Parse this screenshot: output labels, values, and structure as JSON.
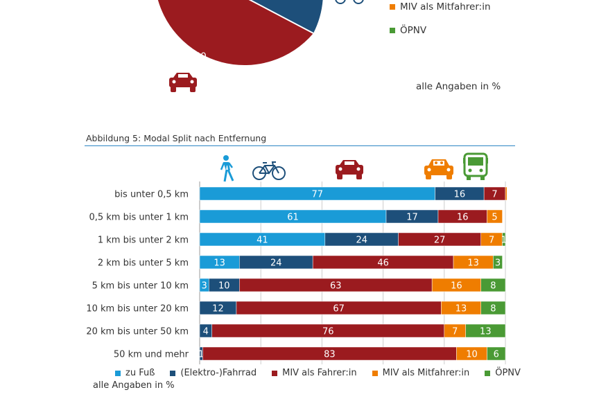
{
  "colors": {
    "walk": "#1a9bd7",
    "bike": "#1d4f7a",
    "driver": "#9b1b1f",
    "passenger": "#ef7d00",
    "transit": "#4a9a35",
    "rule": "#2a85c4",
    "grid": "#cccccc"
  },
  "top_pie": {
    "label_driver": "50",
    "legend": [
      {
        "label": "MIV als Mitfahrer:in",
        "color": "#ef7d00"
      },
      {
        "label": "ÖPNV",
        "color": "#4a9a35"
      }
    ],
    "unit_note": "alle Angaben in %",
    "icons": [
      "bicycle-icon",
      "car-icon"
    ]
  },
  "caption": "Abbildung 5: Modal Split nach Entfernung",
  "chart_data": {
    "type": "bar",
    "orientation": "horizontal",
    "stacked": true,
    "title": "Abbildung 5: Modal Split nach Entfernung",
    "xlim": [
      0,
      100
    ],
    "categories": [
      "bis unter 0,5 km",
      "0,5 km bis unter 1 km",
      "1 km bis unter 2 km",
      "2 km bis unter 5 km",
      "5 km bis unter 10 km",
      "10 km bis unter 20 km",
      "20 km bis unter 50 km",
      "50 km und mehr"
    ],
    "series": [
      {
        "name": "zu Fuß",
        "key": "walk",
        "color": "#1a9bd7",
        "values": [
          77,
          61,
          41,
          13,
          3,
          0,
          0,
          0
        ]
      },
      {
        "name": "(Elektro-)Fahrrad",
        "key": "bike",
        "color": "#1d4f7a",
        "values": [
          16,
          17,
          24,
          24,
          10,
          12,
          4,
          1
        ]
      },
      {
        "name": "MIV als Fahrer:in",
        "key": "driver",
        "color": "#9b1b1f",
        "values": [
          7,
          16,
          27,
          46,
          63,
          67,
          76,
          83
        ]
      },
      {
        "name": "MIV als Mitfahrer:in",
        "key": "passenger",
        "color": "#ef7d00",
        "values": [
          0.5,
          5,
          7,
          13,
          16,
          13,
          7,
          10
        ]
      },
      {
        "name": "ÖPNV",
        "key": "transit",
        "color": "#4a9a35",
        "values": [
          0,
          0,
          1,
          3,
          8,
          8,
          13,
          6
        ]
      }
    ],
    "data_labels": [
      [
        "77",
        "16",
        "7",
        "",
        ""
      ],
      [
        "61",
        "17",
        "16",
        "5",
        ""
      ],
      [
        "41",
        "24",
        "27",
        "7",
        "1"
      ],
      [
        "13",
        "24",
        "46",
        "13",
        "3"
      ],
      [
        "3",
        "10",
        "63",
        "16",
        "8"
      ],
      [
        "",
        "12",
        "67",
        "13",
        "8"
      ],
      [
        "",
        "4",
        "76",
        "7",
        "13"
      ],
      [
        "",
        "1",
        "83",
        "10",
        "6"
      ]
    ],
    "legend_position": "bottom",
    "unit_note": "alle Angaben in %"
  }
}
